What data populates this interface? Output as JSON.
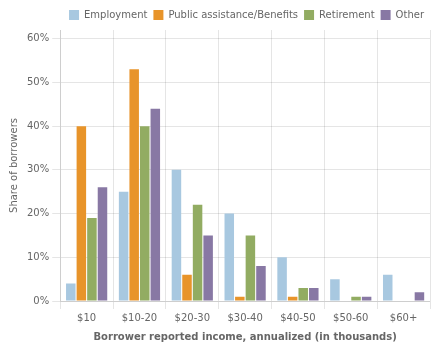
{
  "chart_data": {
    "type": "bar",
    "categories": [
      "$10",
      "$10-20",
      "$20-30",
      "$30-40",
      "$40-50",
      "$50-60",
      "$60+"
    ],
    "series": [
      {
        "name": "Employment",
        "color": "#a8c8e0",
        "values": [
          4,
          25,
          30,
          20,
          10,
          5,
          6
        ]
      },
      {
        "name": "Public assistance/Benefits",
        "color": "#e8942a",
        "values": [
          40,
          53,
          6,
          1,
          1,
          0,
          0
        ]
      },
      {
        "name": "Retirement",
        "color": "#92ac62",
        "values": [
          19,
          40,
          22,
          15,
          3,
          1,
          0
        ]
      },
      {
        "name": "Other",
        "color": "#8878a4",
        "values": [
          26,
          44,
          15,
          8,
          3,
          1,
          2
        ]
      }
    ],
    "ylabel": "Share of borrowers",
    "xlabel": "Borrower reported income, annualized (in thousands)",
    "ylim": [
      0,
      62
    ],
    "yticks": [
      {
        "value": 0,
        "label": "0%"
      },
      {
        "value": 10,
        "label": "10%"
      },
      {
        "value": 20,
        "label": "20%"
      },
      {
        "value": 30,
        "label": "30%"
      },
      {
        "value": 40,
        "label": "40%"
      },
      {
        "value": 50,
        "label": "50%"
      },
      {
        "value": 60,
        "label": "60%"
      }
    ],
    "grid": true,
    "legend": "upper right"
  }
}
